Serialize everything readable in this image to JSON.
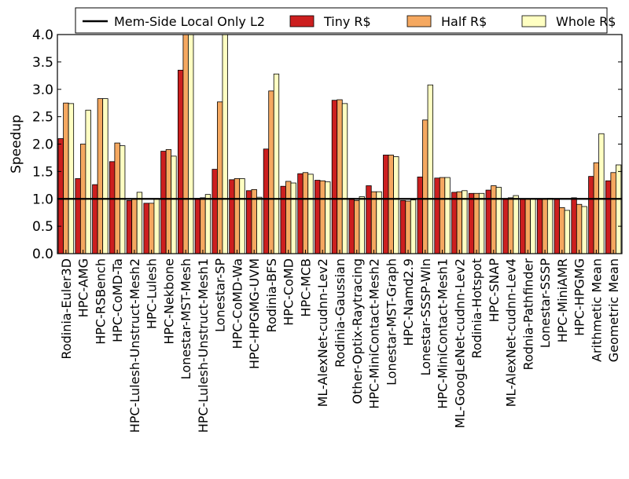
{
  "chart_data": {
    "type": "bar",
    "title": "",
    "xlabel": "",
    "ylabel": "Speedup",
    "ylim": [
      0,
      4.0
    ],
    "yticks": [
      "0.0",
      "0.5",
      "1.0",
      "1.5",
      "2.0",
      "2.5",
      "3.0",
      "3.5",
      "4.0"
    ],
    "grid": false,
    "legend_position": "top",
    "baseline": {
      "name": "Mem-Side Local Only L2",
      "value": 1.0,
      "color": "#000000"
    },
    "categories": [
      "Rodinia-Euler3D",
      "HPC-AMG",
      "HPC-RSBench",
      "HPC-CoMD-Ta",
      "HPC-Lulesh-Unstruct-Mesh2",
      "HPC-Lulesh",
      "HPC-Nekbone",
      "Lonestar-MST-Mesh",
      "HPC-Lulesh-Unstruct-Mesh1",
      "Lonestar-SP",
      "HPC-CoMD-Wa",
      "HPC-HPGMG-UVM",
      "Rodinia-BFS",
      "HPC-CoMD",
      "HPC-MCB",
      "ML-AlexNet-cudnn-Lev2",
      "Rodinia-Gaussian",
      "Other-Optix-Raytracing",
      "HPC-MiniContact-Mesh2",
      "Lonestar-MST-Graph",
      "HPC-Namd2.9",
      "Lonestar-SSSP-Wln",
      "HPC-MiniContact-Mesh1",
      "ML-GoogLeNet-cudnn-Lev2",
      "Rodinia-Hotspot",
      "HPC-SNAP",
      "ML-AlexNet-cudnn-Lev4",
      "Rodnia-Pathfinder",
      "Lonestar-SSSP",
      "HPC-MiniAMR",
      "HPC-HPGMG",
      "Arithmetic Mean",
      "Geometric Mean"
    ],
    "series": [
      {
        "name": "Tiny R$",
        "color": "#cc1f1f",
        "values": [
          2.1,
          1.37,
          1.26,
          1.68,
          0.97,
          0.92,
          1.87,
          3.35,
          1.01,
          1.54,
          1.35,
          1.15,
          1.91,
          1.23,
          1.46,
          1.34,
          2.8,
          1.01,
          1.24,
          1.8,
          0.97,
          1.4,
          1.38,
          1.12,
          1.1,
          1.16,
          1.0,
          1.0,
          1.0,
          1.0,
          1.02,
          1.41,
          1.33
        ]
      },
      {
        "name": "Half R$",
        "color": "#f5a860",
        "values": [
          2.75,
          2.0,
          2.83,
          2.02,
          1.0,
          0.92,
          1.9,
          4.0,
          1.02,
          2.77,
          1.37,
          1.17,
          2.97,
          1.32,
          1.48,
          1.33,
          2.81,
          0.97,
          1.13,
          1.8,
          0.96,
          2.44,
          1.39,
          1.13,
          1.1,
          1.24,
          1.02,
          1.0,
          1.0,
          0.84,
          0.9,
          1.66,
          1.48
        ]
      },
      {
        "name": "Whole R$",
        "color": "#ffffc2",
        "values": [
          2.74,
          2.62,
          2.83,
          1.97,
          1.12,
          1.0,
          1.78,
          4.0,
          1.08,
          4.0,
          1.37,
          1.03,
          3.28,
          1.29,
          1.45,
          1.31,
          2.74,
          1.04,
          1.13,
          1.77,
          0.98,
          3.08,
          1.39,
          1.15,
          1.1,
          1.21,
          1.06,
          1.0,
          1.01,
          0.79,
          0.86,
          2.19,
          1.62
        ]
      }
    ]
  }
}
